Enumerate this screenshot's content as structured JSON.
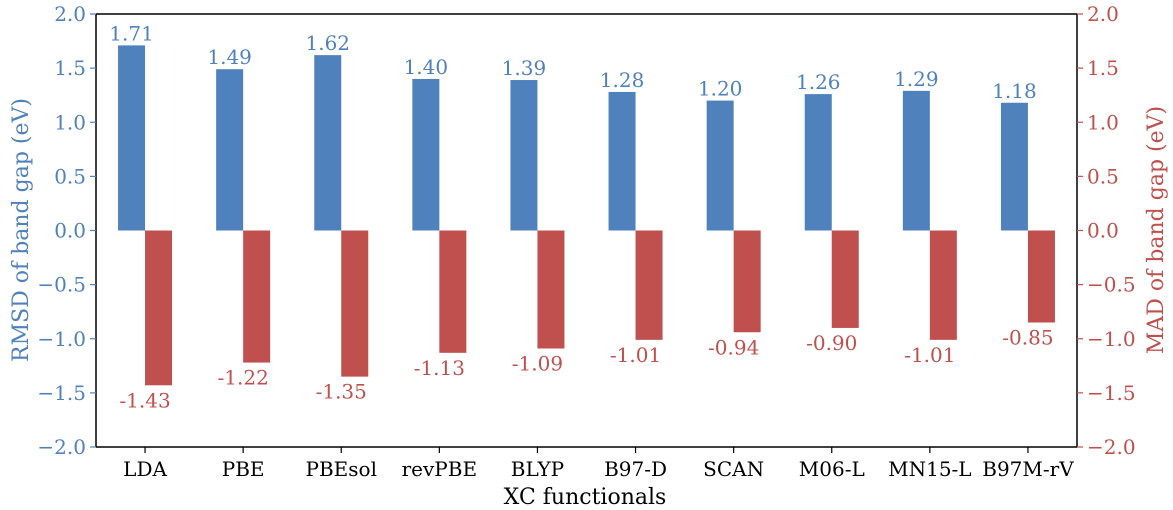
{
  "chart_data": {
    "type": "bar",
    "categories": [
      "LDA",
      "PBE",
      "PBEsol",
      "revPBE",
      "BLYP",
      "B97-D",
      "SCAN",
      "M06-L",
      "MN15-L",
      "B97M-rV"
    ],
    "series": [
      {
        "axis": "left",
        "color": "#4f81bd",
        "values": [
          1.71,
          1.49,
          1.62,
          1.4,
          1.39,
          1.28,
          1.2,
          1.26,
          1.29,
          1.18
        ],
        "labels": [
          "1.71",
          "1.49",
          "1.62",
          "1.40",
          "1.39",
          "1.28",
          "1.20",
          "1.26",
          "1.29",
          "1.18"
        ]
      },
      {
        "axis": "right",
        "color": "#c0504d",
        "values": [
          -1.43,
          -1.22,
          -1.35,
          -1.13,
          -1.09,
          -1.01,
          -0.94,
          -0.9,
          -1.01,
          -0.85
        ],
        "labels": [
          "-1.43",
          "-1.22",
          "-1.35",
          "-1.13",
          "-1.09",
          "-1.01",
          "-0.94",
          "-0.90",
          "-1.01",
          "-0.85"
        ]
      }
    ],
    "xlabel": "XC functionals",
    "ylabel": "RMSD of band gap (eV)",
    "ylabel_right": "MAD of band gap (eV)",
    "ylim": [
      -2.0,
      2.0
    ],
    "ylim_right": [
      -2.0,
      2.0
    ],
    "yticks": [
      "−2.0",
      "−1.5",
      "−1.0",
      "−0.5",
      "0.0",
      "0.5",
      "1.0",
      "1.5",
      "2.0"
    ],
    "yticks_right": [
      "−2.0",
      "−1.5",
      "−1.0",
      "−0.5",
      "0.0",
      "0.5",
      "1.0",
      "1.5",
      "2.0"
    ],
    "grid": false,
    "left_axis_color": "#4f81bd",
    "right_axis_color": "#c0504d"
  }
}
